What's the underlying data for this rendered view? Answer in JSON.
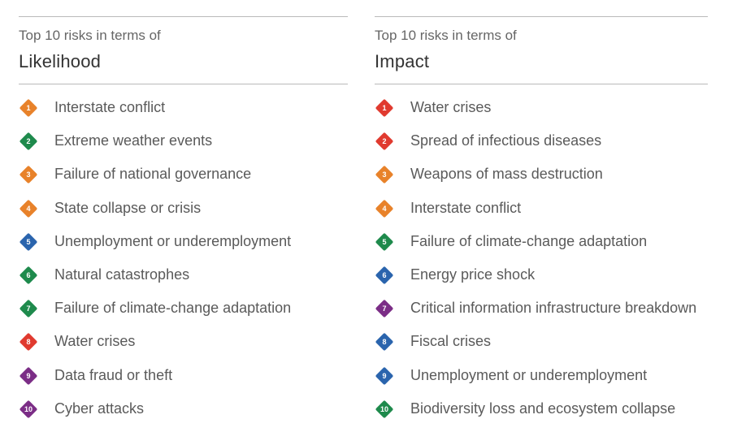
{
  "panels": {
    "likelihood": {
      "subtitle": "Top 10 risks in terms of",
      "heading": "Likelihood",
      "items": [
        {
          "rank": "1",
          "label": "Interstate conflict",
          "color": "#e8822a"
        },
        {
          "rank": "2",
          "label": "Extreme weather events",
          "color": "#1e8a4c"
        },
        {
          "rank": "3",
          "label": "Failure of national governance",
          "color": "#e8822a"
        },
        {
          "rank": "4",
          "label": "State collapse or crisis",
          "color": "#e8822a"
        },
        {
          "rank": "5",
          "label": "Unemployment or underemployment",
          "color": "#2a64ad"
        },
        {
          "rank": "6",
          "label": "Natural catastrophes",
          "color": "#1e8a4c"
        },
        {
          "rank": "7",
          "label": "Failure of climate-change adaptation",
          "color": "#1e8a4c"
        },
        {
          "rank": "8",
          "label": "Water crises",
          "color": "#e03a2f"
        },
        {
          "rank": "9",
          "label": "Data fraud or theft",
          "color": "#7b2d86"
        },
        {
          "rank": "10",
          "label": "Cyber attacks",
          "color": "#7b2d86"
        }
      ]
    },
    "impact": {
      "subtitle": "Top 10 risks in terms of",
      "heading": "Impact",
      "items": [
        {
          "rank": "1",
          "label": "Water crises",
          "color": "#e03a2f"
        },
        {
          "rank": "2",
          "label": "Spread of infectious diseases",
          "color": "#e03a2f"
        },
        {
          "rank": "3",
          "label": "Weapons of mass destruction",
          "color": "#e8822a"
        },
        {
          "rank": "4",
          "label": "Interstate conflict",
          "color": "#e8822a"
        },
        {
          "rank": "5",
          "label": "Failure of climate-change adaptation",
          "color": "#1e8a4c"
        },
        {
          "rank": "6",
          "label": "Energy price shock",
          "color": "#2a64ad"
        },
        {
          "rank": "7",
          "label": "Critical information infrastructure breakdown",
          "color": "#7b2d86"
        },
        {
          "rank": "8",
          "label": "Fiscal crises",
          "color": "#2a64ad"
        },
        {
          "rank": "9",
          "label": "Unemployment or underemployment",
          "color": "#2a64ad"
        },
        {
          "rank": "10",
          "label": "Biodiversity loss and ecosystem collapse",
          "color": "#1e8a4c"
        }
      ]
    }
  }
}
